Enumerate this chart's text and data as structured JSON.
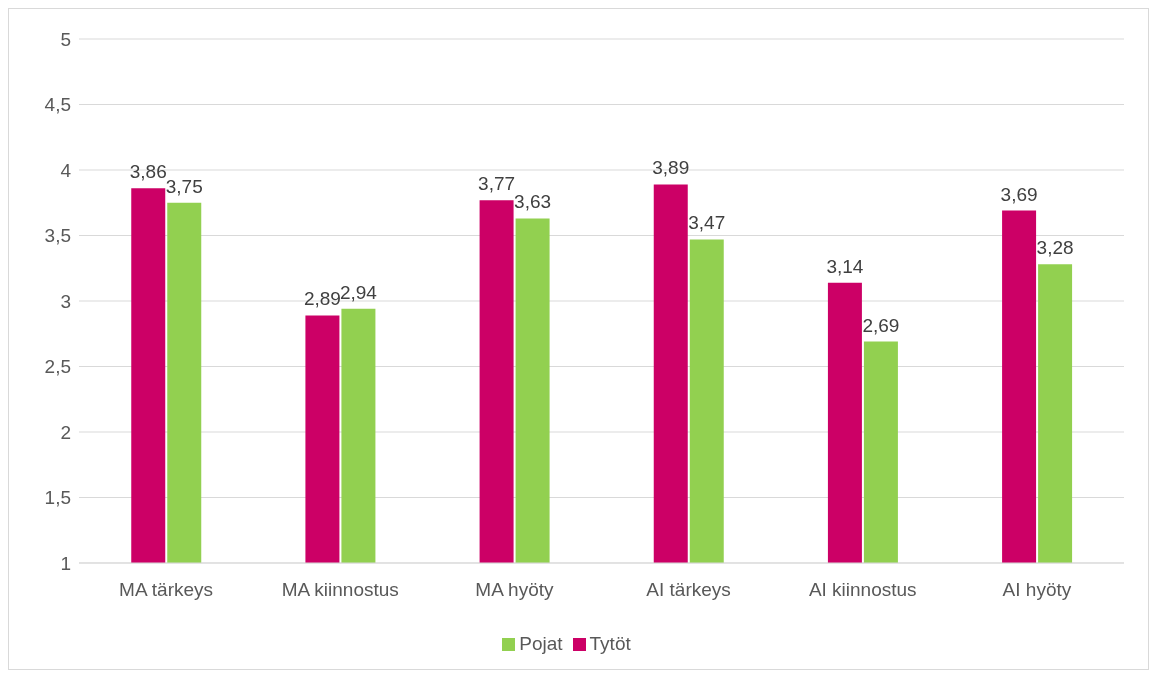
{
  "chart_data": {
    "type": "bar",
    "categories": [
      "MA tärkeys",
      "MA kiinnostus",
      "MA hyöty",
      "AI tärkeys",
      "AI kiinnostus",
      "AI hyöty"
    ],
    "series": [
      {
        "name": "Tytöt",
        "color": "#cc0066",
        "values": [
          3.86,
          2.89,
          3.77,
          3.89,
          3.14,
          3.69
        ],
        "value_labels": [
          "3,86",
          "2,89",
          "3,77",
          "3,89",
          "3,14",
          "3,69"
        ]
      },
      {
        "name": "Pojat",
        "color": "#92d050",
        "values": [
          3.75,
          2.94,
          3.63,
          3.47,
          2.69,
          3.28
        ],
        "value_labels": [
          "3,75",
          "2,94",
          "3,63",
          "3,47",
          "2,69",
          "3,28"
        ]
      }
    ],
    "ylim": [
      1,
      5
    ],
    "yticks": [
      1,
      {
        "value": 1.5,
        "label": "1,5"
      },
      2,
      {
        "value": 2.5,
        "label": "2,5"
      },
      3,
      {
        "value": 3.5,
        "label": "3,5"
      },
      4,
      {
        "value": 4.5,
        "label": "4,5"
      },
      5
    ],
    "grid": "y",
    "legend": "bottom"
  }
}
